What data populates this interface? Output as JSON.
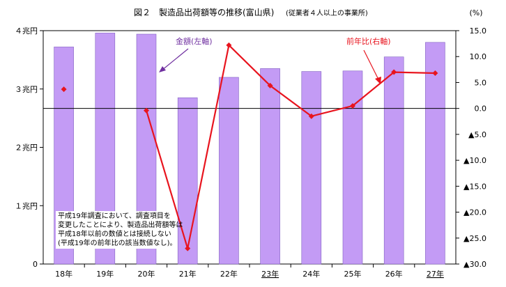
{
  "chart_data": {
    "type": "bar",
    "title": "図２　製造品出荷額等の推移(富山県)",
    "subtitle": "(従業者４人以上の事業所)",
    "categories": [
      "18年",
      "19年",
      "20年",
      "21年",
      "22年",
      "23年",
      "24年",
      "25年",
      "26年",
      "27年"
    ],
    "underlined_categories": [
      "23年",
      "27年"
    ],
    "left_axis": {
      "unit_values": [
        0,
        1,
        2,
        3,
        4
      ],
      "tick_labels": [
        "0",
        "１兆円",
        "２兆円",
        "３兆円",
        "４兆円"
      ],
      "ylim": [
        0,
        4
      ]
    },
    "right_axis": {
      "unit_label": "(%)",
      "ylim": [
        -30,
        15
      ],
      "tick_values": [
        15,
        10,
        5,
        0,
        -5,
        -10,
        -15,
        -20,
        -25,
        -30
      ],
      "tick_labels": [
        "15.0",
        "10.0",
        "5.0",
        "0.0",
        "▲5.0",
        "▲10.0",
        "▲15.0",
        "▲20.0",
        "▲25.0",
        "▲30.0"
      ]
    },
    "series": [
      {
        "name": "金額(左軸)",
        "kind": "bar",
        "axis": "left",
        "color": "#c39bf5",
        "values": [
          3.72,
          3.96,
          3.94,
          2.85,
          3.2,
          3.35,
          3.3,
          3.31,
          3.55,
          3.8
        ]
      },
      {
        "name": "前年比(右軸)",
        "kind": "line",
        "axis": "right",
        "color": "#e8141e",
        "values": [
          3.7,
          null,
          -0.4,
          -27.0,
          12.2,
          4.4,
          -1.5,
          0.5,
          7.0,
          6.8
        ],
        "connected_from_index": 2
      }
    ],
    "grid": false,
    "reference_line_at": 0,
    "legend": "inline annotations with arrows",
    "note_lines": [
      "平成19年調査において、調査項目を",
      "変更したことにより、製造品出荷額等は",
      "平成18年以前の数値とは接続しない",
      "(平成19年の前年比の該当数値なし)。"
    ]
  }
}
